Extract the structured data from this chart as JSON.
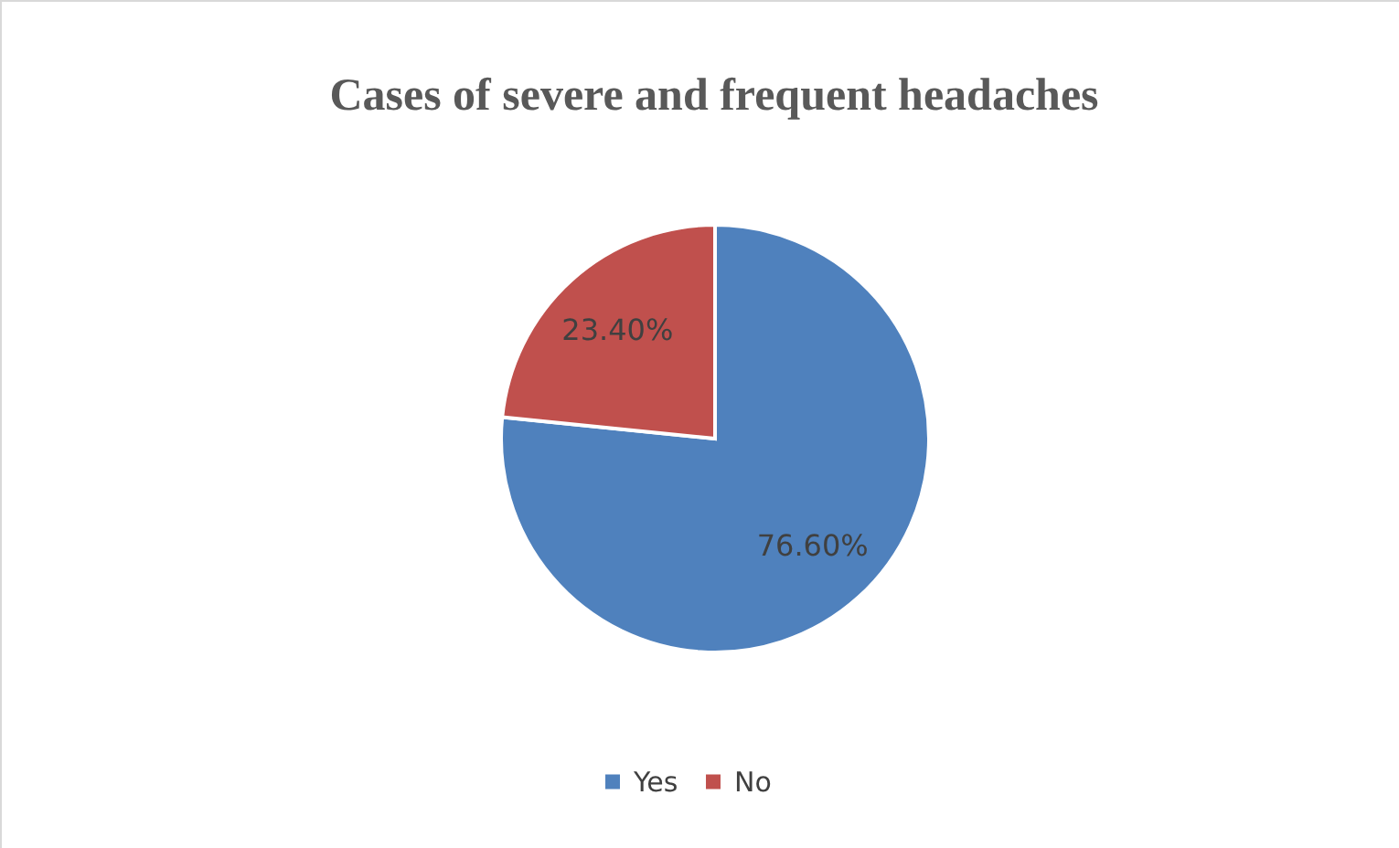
{
  "chart_data": {
    "type": "pie",
    "title": "Cases of severe and frequent headaches",
    "categories": [
      "Yes",
      "No"
    ],
    "values": [
      76.6,
      23.4
    ],
    "colors": [
      "#4f81bd",
      "#c0504d"
    ],
    "value_labels": [
      "76.60%",
      "23.40%"
    ],
    "legend": "bottom"
  }
}
